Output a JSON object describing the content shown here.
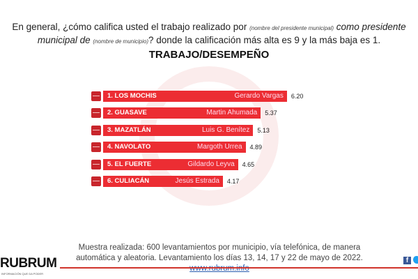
{
  "question": {
    "part1": "En general, ¿cómo califica usted el trabajo realizado por",
    "note1": "(nombre del presidente municipal)",
    "part2": "como presidente municipal de",
    "note2": "(nombre de municipio)",
    "part3": "? donde la calificación más alta es 9 y la más baja es 1."
  },
  "chart_data": {
    "type": "bar",
    "title": "TRABAJO/DESEMPEÑO",
    "orientation": "horizontal",
    "categories": [
      "1. LOS MOCHIS",
      "2. GUASAVE",
      "3. MAZATLÁN",
      "4. NAVOLATO",
      "5. EL FUERTE",
      "6. CULIACÁN"
    ],
    "labels": [
      "Gerardo Vargas",
      "Martin Ahumada",
      "Luis G. Benítez",
      "Margoth Urrea",
      "Gildardo Leyva",
      "Jesús Estrada"
    ],
    "values_text": [
      "6.20",
      "5.37",
      "5.13",
      "4.89",
      "4.65",
      "4.17"
    ],
    "values": [
      6.2,
      5.37,
      5.13,
      4.89,
      4.65,
      4.17
    ],
    "bar_color": "#ec2d33"
  },
  "footer": {
    "text1": "Muestra realizada: 600 levantamientos por municipio, vía telefónica, de manera automática y aleatoria.  Levantamiento los días 13, 14, 17 y 22 de mayo de 2022.",
    "link": "www.rubrum.info"
  },
  "brand": {
    "logo": "RUBRUM",
    "tagline": "INFORMACIÓN QUE DA PODER",
    "social": [
      "facebook-icon",
      "twitter-icon"
    ]
  }
}
